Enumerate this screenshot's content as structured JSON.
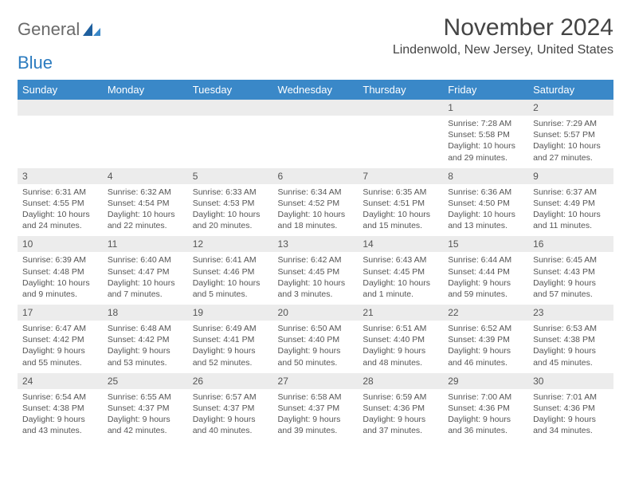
{
  "logo": {
    "text1": "General",
    "text2": "Blue"
  },
  "title": "November 2024",
  "location": "Lindenwold, New Jersey, United States",
  "colors": {
    "header_bg": "#3a88c8",
    "daynum_bg": "#ececec",
    "border": "#c9d5df",
    "text": "#555555",
    "logo_gray": "#6a6a6a",
    "logo_blue": "#2b7bbf"
  },
  "dayHeaders": [
    "Sunday",
    "Monday",
    "Tuesday",
    "Wednesday",
    "Thursday",
    "Friday",
    "Saturday"
  ],
  "weeks": [
    [
      {
        "n": "",
        "lines": []
      },
      {
        "n": "",
        "lines": []
      },
      {
        "n": "",
        "lines": []
      },
      {
        "n": "",
        "lines": []
      },
      {
        "n": "",
        "lines": []
      },
      {
        "n": "1",
        "lines": [
          "Sunrise: 7:28 AM",
          "Sunset: 5:58 PM",
          "Daylight: 10 hours and 29 minutes."
        ]
      },
      {
        "n": "2",
        "lines": [
          "Sunrise: 7:29 AM",
          "Sunset: 5:57 PM",
          "Daylight: 10 hours and 27 minutes."
        ]
      }
    ],
    [
      {
        "n": "3",
        "lines": [
          "Sunrise: 6:31 AM",
          "Sunset: 4:55 PM",
          "Daylight: 10 hours and 24 minutes."
        ]
      },
      {
        "n": "4",
        "lines": [
          "Sunrise: 6:32 AM",
          "Sunset: 4:54 PM",
          "Daylight: 10 hours and 22 minutes."
        ]
      },
      {
        "n": "5",
        "lines": [
          "Sunrise: 6:33 AM",
          "Sunset: 4:53 PM",
          "Daylight: 10 hours and 20 minutes."
        ]
      },
      {
        "n": "6",
        "lines": [
          "Sunrise: 6:34 AM",
          "Sunset: 4:52 PM",
          "Daylight: 10 hours and 18 minutes."
        ]
      },
      {
        "n": "7",
        "lines": [
          "Sunrise: 6:35 AM",
          "Sunset: 4:51 PM",
          "Daylight: 10 hours and 15 minutes."
        ]
      },
      {
        "n": "8",
        "lines": [
          "Sunrise: 6:36 AM",
          "Sunset: 4:50 PM",
          "Daylight: 10 hours and 13 minutes."
        ]
      },
      {
        "n": "9",
        "lines": [
          "Sunrise: 6:37 AM",
          "Sunset: 4:49 PM",
          "Daylight: 10 hours and 11 minutes."
        ]
      }
    ],
    [
      {
        "n": "10",
        "lines": [
          "Sunrise: 6:39 AM",
          "Sunset: 4:48 PM",
          "Daylight: 10 hours and 9 minutes."
        ]
      },
      {
        "n": "11",
        "lines": [
          "Sunrise: 6:40 AM",
          "Sunset: 4:47 PM",
          "Daylight: 10 hours and 7 minutes."
        ]
      },
      {
        "n": "12",
        "lines": [
          "Sunrise: 6:41 AM",
          "Sunset: 4:46 PM",
          "Daylight: 10 hours and 5 minutes."
        ]
      },
      {
        "n": "13",
        "lines": [
          "Sunrise: 6:42 AM",
          "Sunset: 4:45 PM",
          "Daylight: 10 hours and 3 minutes."
        ]
      },
      {
        "n": "14",
        "lines": [
          "Sunrise: 6:43 AM",
          "Sunset: 4:45 PM",
          "Daylight: 10 hours and 1 minute."
        ]
      },
      {
        "n": "15",
        "lines": [
          "Sunrise: 6:44 AM",
          "Sunset: 4:44 PM",
          "Daylight: 9 hours and 59 minutes."
        ]
      },
      {
        "n": "16",
        "lines": [
          "Sunrise: 6:45 AM",
          "Sunset: 4:43 PM",
          "Daylight: 9 hours and 57 minutes."
        ]
      }
    ],
    [
      {
        "n": "17",
        "lines": [
          "Sunrise: 6:47 AM",
          "Sunset: 4:42 PM",
          "Daylight: 9 hours and 55 minutes."
        ]
      },
      {
        "n": "18",
        "lines": [
          "Sunrise: 6:48 AM",
          "Sunset: 4:42 PM",
          "Daylight: 9 hours and 53 minutes."
        ]
      },
      {
        "n": "19",
        "lines": [
          "Sunrise: 6:49 AM",
          "Sunset: 4:41 PM",
          "Daylight: 9 hours and 52 minutes."
        ]
      },
      {
        "n": "20",
        "lines": [
          "Sunrise: 6:50 AM",
          "Sunset: 4:40 PM",
          "Daylight: 9 hours and 50 minutes."
        ]
      },
      {
        "n": "21",
        "lines": [
          "Sunrise: 6:51 AM",
          "Sunset: 4:40 PM",
          "Daylight: 9 hours and 48 minutes."
        ]
      },
      {
        "n": "22",
        "lines": [
          "Sunrise: 6:52 AM",
          "Sunset: 4:39 PM",
          "Daylight: 9 hours and 46 minutes."
        ]
      },
      {
        "n": "23",
        "lines": [
          "Sunrise: 6:53 AM",
          "Sunset: 4:38 PM",
          "Daylight: 9 hours and 45 minutes."
        ]
      }
    ],
    [
      {
        "n": "24",
        "lines": [
          "Sunrise: 6:54 AM",
          "Sunset: 4:38 PM",
          "Daylight: 9 hours and 43 minutes."
        ]
      },
      {
        "n": "25",
        "lines": [
          "Sunrise: 6:55 AM",
          "Sunset: 4:37 PM",
          "Daylight: 9 hours and 42 minutes."
        ]
      },
      {
        "n": "26",
        "lines": [
          "Sunrise: 6:57 AM",
          "Sunset: 4:37 PM",
          "Daylight: 9 hours and 40 minutes."
        ]
      },
      {
        "n": "27",
        "lines": [
          "Sunrise: 6:58 AM",
          "Sunset: 4:37 PM",
          "Daylight: 9 hours and 39 minutes."
        ]
      },
      {
        "n": "28",
        "lines": [
          "Sunrise: 6:59 AM",
          "Sunset: 4:36 PM",
          "Daylight: 9 hours and 37 minutes."
        ]
      },
      {
        "n": "29",
        "lines": [
          "Sunrise: 7:00 AM",
          "Sunset: 4:36 PM",
          "Daylight: 9 hours and 36 minutes."
        ]
      },
      {
        "n": "30",
        "lines": [
          "Sunrise: 7:01 AM",
          "Sunset: 4:36 PM",
          "Daylight: 9 hours and 34 minutes."
        ]
      }
    ]
  ]
}
